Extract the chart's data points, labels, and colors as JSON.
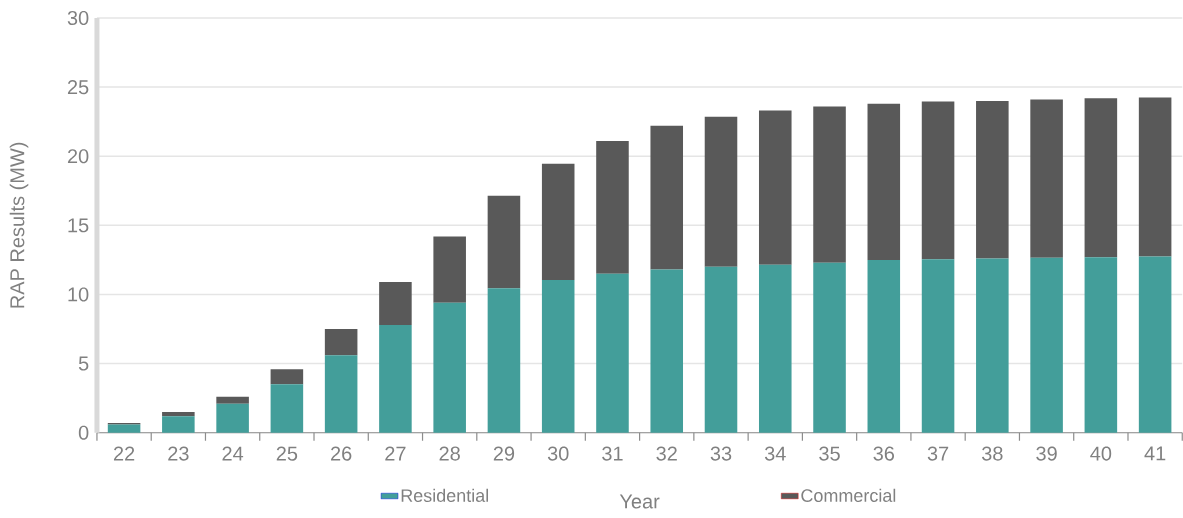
{
  "chart_data": {
    "type": "bar",
    "stacked": true,
    "xlabel": "Year",
    "ylabel": "RAP Results (MW)",
    "categories": [
      "22",
      "23",
      "24",
      "25",
      "26",
      "27",
      "28",
      "29",
      "30",
      "31",
      "32",
      "33",
      "34",
      "35",
      "36",
      "37",
      "38",
      "39",
      "40",
      "41"
    ],
    "series": [
      {
        "name": "Residential",
        "color": "#439e9a",
        "values": [
          0.6,
          1.2,
          2.1,
          3.5,
          5.6,
          7.8,
          9.4,
          10.45,
          11.05,
          11.5,
          11.8,
          12.0,
          12.15,
          12.3,
          12.5,
          12.55,
          12.6,
          12.65,
          12.7,
          12.75
        ]
      },
      {
        "name": "Commercial",
        "color": "#595959",
        "values": [
          0.1,
          0.3,
          0.5,
          1.1,
          1.9,
          3.1,
          4.8,
          6.7,
          8.4,
          9.6,
          10.4,
          10.85,
          11.15,
          11.3,
          11.3,
          11.4,
          11.4,
          11.45,
          11.5,
          11.5
        ]
      }
    ],
    "ylim": [
      0,
      30
    ],
    "yticks": [
      0,
      5,
      10,
      15,
      20,
      25,
      30
    ],
    "grid": "y",
    "legend": "bottom"
  }
}
